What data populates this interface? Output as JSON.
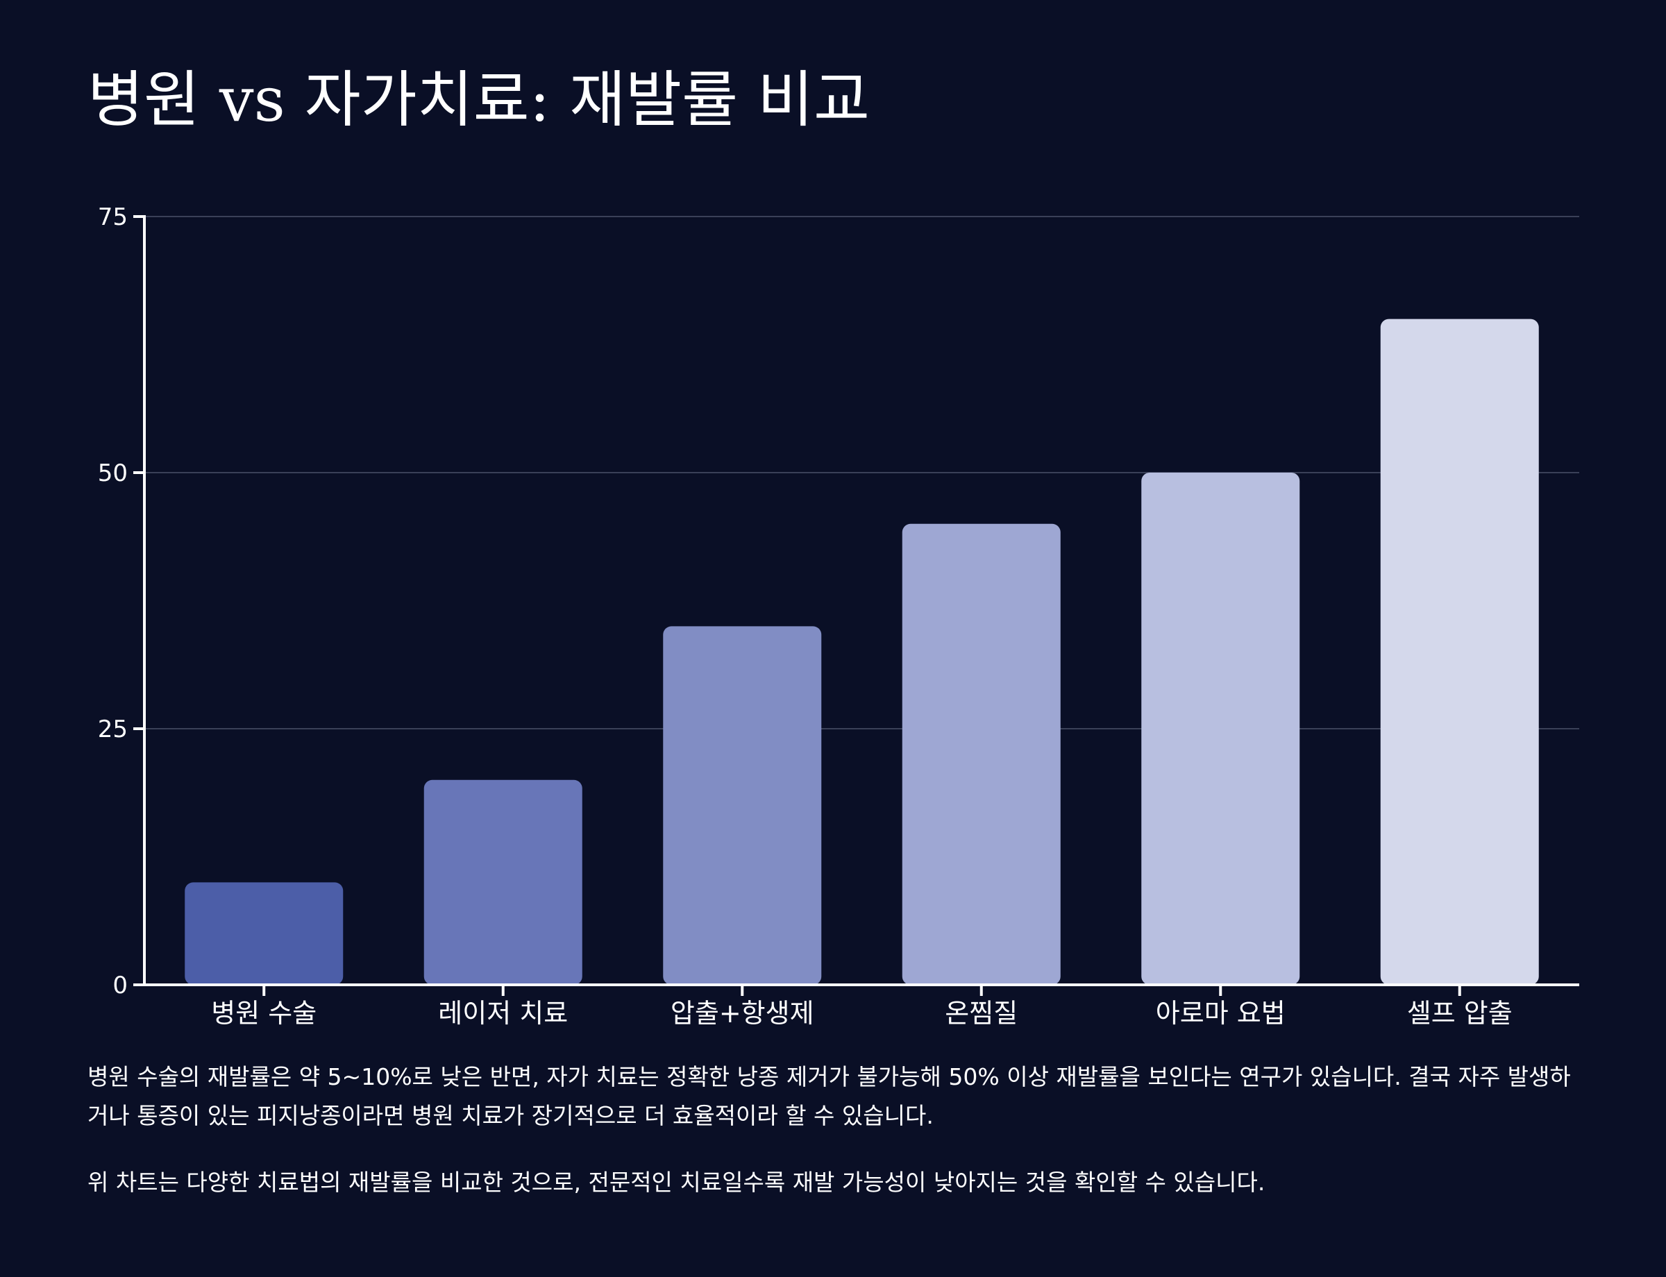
{
  "title": "병원 vs 자가치료: 재발률 비교",
  "chart_data": {
    "type": "bar",
    "title": "병원 vs 자가치료: 재발률 비교",
    "xlabel": "",
    "ylabel": "",
    "categories": [
      "병원 수술",
      "레이저 치료",
      "압출+항생제",
      "온찜질",
      "아로마 요법",
      "셀프 압출"
    ],
    "values": [
      10,
      20,
      35,
      45,
      50,
      65
    ],
    "ylim": [
      0,
      75
    ],
    "yticks": [
      0,
      25,
      50,
      75
    ],
    "grid": true,
    "bar_colors": [
      "#4c5ea8",
      "#6876b8",
      "#818dc4",
      "#9ea7d3",
      "#b8bfe0",
      "#d4d8eb"
    ]
  },
  "captions": [
    "병원 수술의 재발률은 약 5~10%로 낮은 반면, 자가 치료는 정확한 낭종 제거가 불가능해 50% 이상 재발률을 보인다는 연구가 있습니다. 결국 자주 발생하거나 통증이 있는 피지낭종이라면 병원 치료가 장기적으로 더 효율적이라 할 수 있습니다.",
    "위 차트는 다양한 치료법의 재발률을 비교한 것으로, 전문적인 치료일수록 재발 가능성이 낮아지는 것을 확인할 수 있습니다."
  ],
  "colors": {
    "background": "#0a0f26",
    "axis": "#ffffff",
    "grid": "#3a4058"
  }
}
